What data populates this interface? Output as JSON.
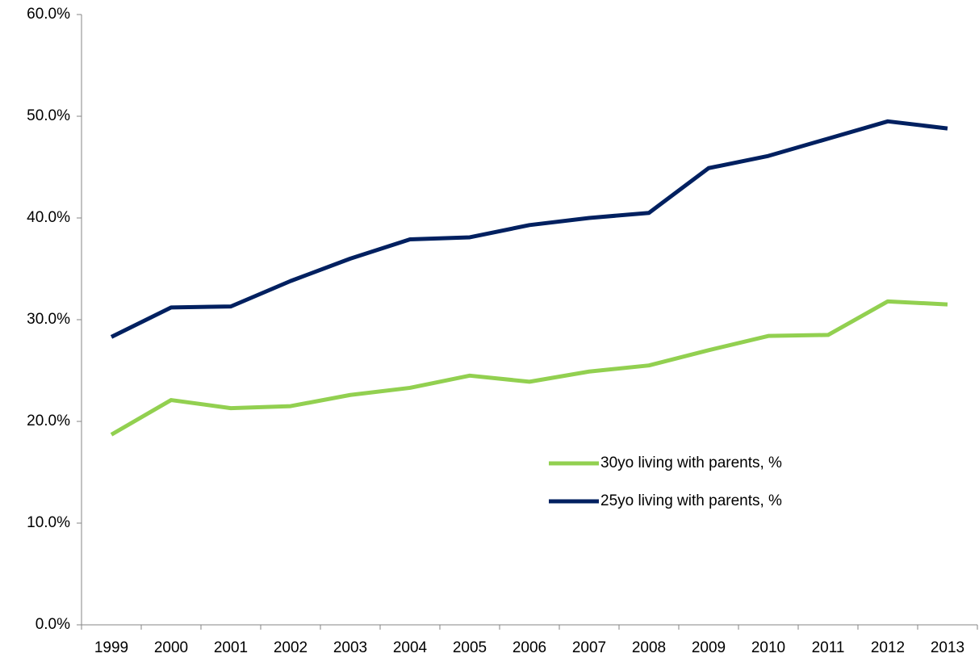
{
  "chart_data": {
    "type": "line",
    "categories": [
      "1999",
      "2000",
      "2001",
      "2002",
      "2003",
      "2004",
      "2005",
      "2006",
      "2007",
      "2008",
      "2009",
      "2010",
      "2011",
      "2012",
      "2013"
    ],
    "series": [
      {
        "name": "30yo living with parents, %",
        "color": "#92d050",
        "values": [
          18.7,
          22.1,
          21.3,
          21.5,
          22.6,
          23.3,
          24.5,
          23.9,
          24.9,
          25.5,
          27.0,
          28.4,
          28.5,
          31.8,
          31.5
        ]
      },
      {
        "name": "25yo living with parents, %",
        "color": "#002060",
        "values": [
          28.3,
          31.2,
          31.3,
          33.8,
          36.0,
          37.9,
          38.1,
          39.3,
          40.0,
          40.5,
          44.9,
          46.1,
          47.8,
          49.5,
          48.8
        ]
      }
    ],
    "ylim": [
      0,
      60
    ],
    "yticks": [
      {
        "value": 0,
        "label": "0.0%"
      },
      {
        "value": 10,
        "label": "10.0%"
      },
      {
        "value": 20,
        "label": "20.0%"
      },
      {
        "value": 30,
        "label": "30.0%"
      },
      {
        "value": 40,
        "label": "40.0%"
      },
      {
        "value": 50,
        "label": "50.0%"
      },
      {
        "value": 60,
        "label": "60.0%"
      }
    ],
    "grid": false
  }
}
